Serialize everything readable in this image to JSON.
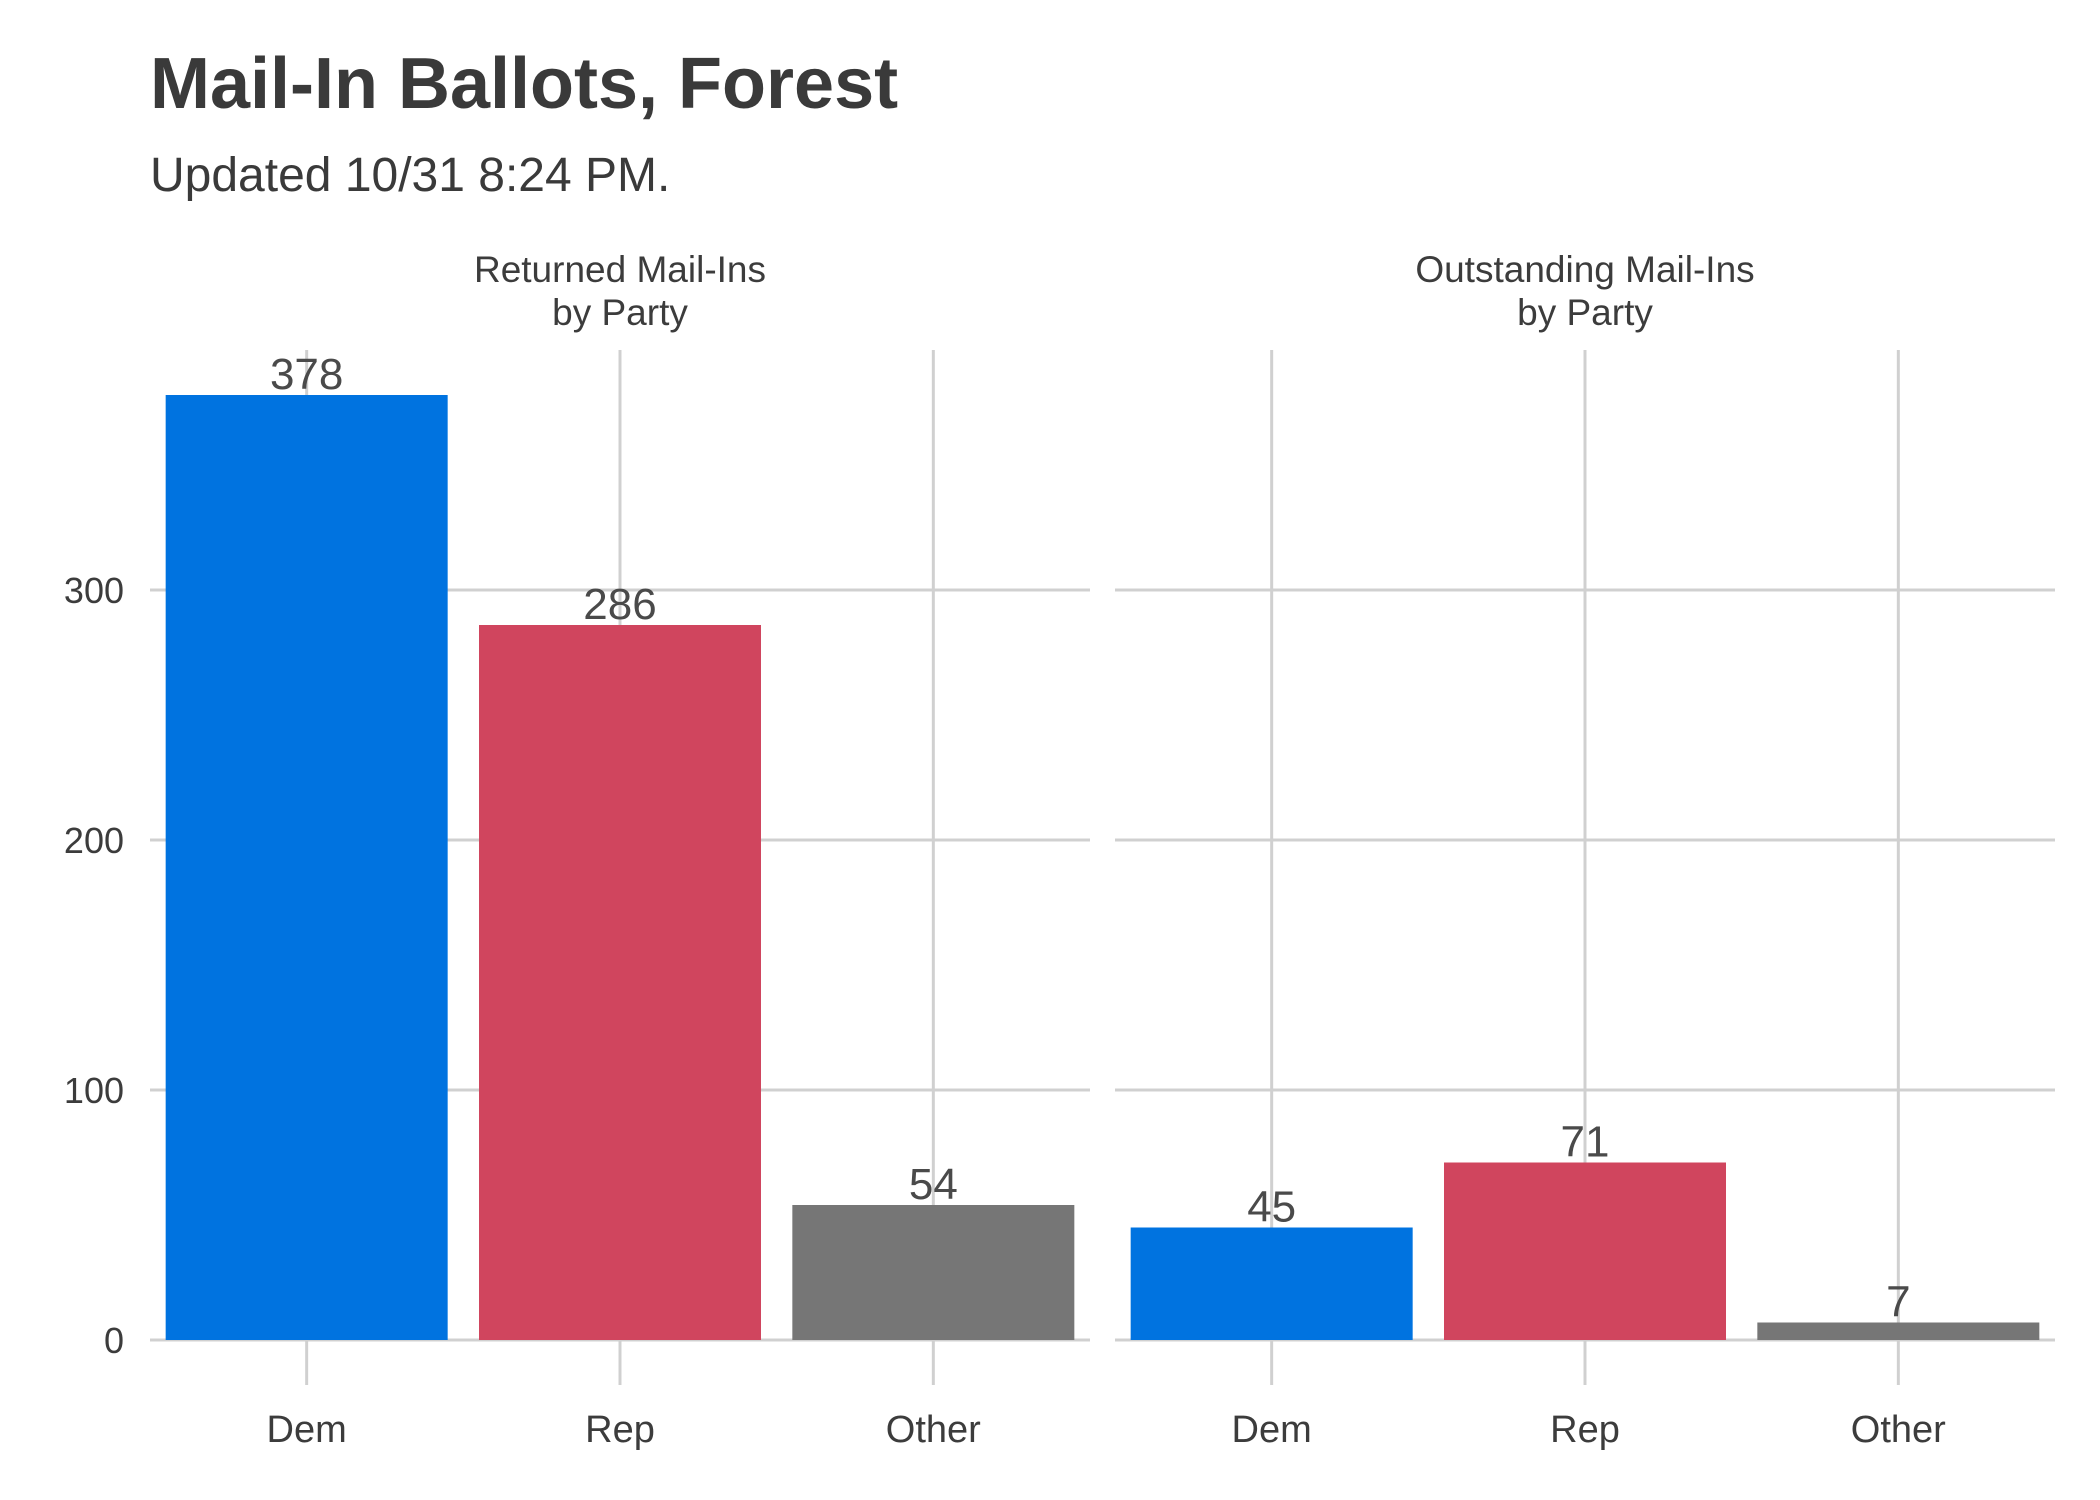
{
  "chart_data": {
    "type": "bar",
    "title": "Mail-In Ballots, Forest",
    "subtitle": "Updated 10/31 8:24 PM.",
    "categories": [
      "Dem",
      "Rep",
      "Other"
    ],
    "colors": [
      "#0073e0",
      "#d0455e",
      "#767676"
    ],
    "ylim": [
      0,
      400
    ],
    "yticks": [
      0,
      100,
      200,
      300
    ],
    "grid": true,
    "panels": [
      {
        "title_line1": "Returned Mail-Ins",
        "title_line2": "by Party",
        "values": [
          378,
          286,
          54
        ]
      },
      {
        "title_line1": "Outstanding Mail-Ins",
        "title_line2": "by Party",
        "values": [
          45,
          71,
          7
        ]
      }
    ]
  }
}
